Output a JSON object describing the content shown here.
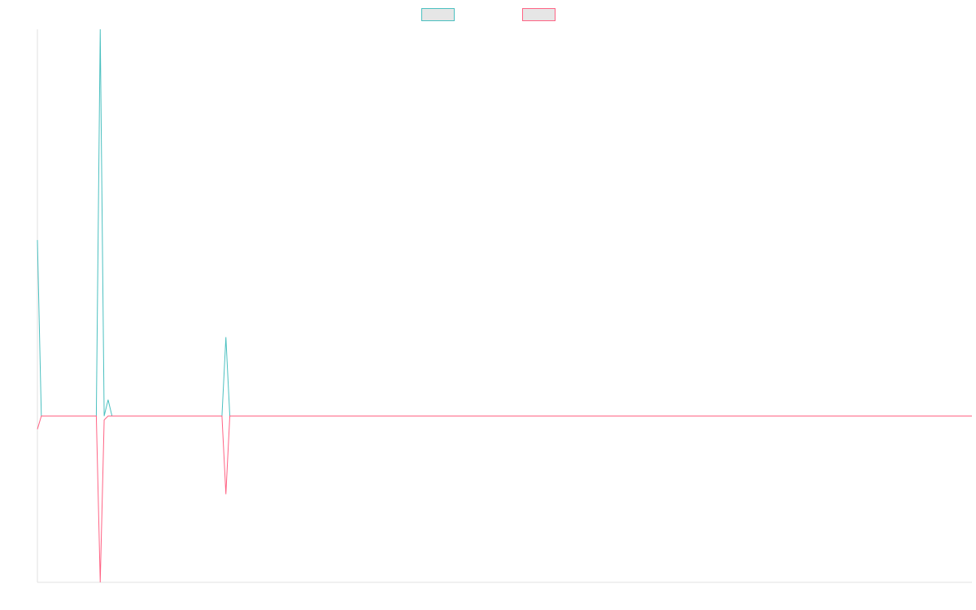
{
  "chart_data": {
    "type": "line",
    "x": [
      0,
      1,
      15,
      16,
      17,
      18,
      19,
      47,
      48,
      49,
      238
    ],
    "xlim": [
      0,
      238
    ],
    "ylim": [
      -43,
      100
    ],
    "series": [
      {
        "color": "#4bc0c0",
        "values": [
          45.5,
          0,
          0,
          100,
          0,
          4.2,
          0,
          0,
          20.4,
          0,
          0
        ]
      },
      {
        "color": "#ff6384",
        "values": [
          -3.4,
          0,
          0,
          -43,
          -1,
          0,
          0,
          0,
          -20.2,
          0,
          0
        ]
      }
    ]
  }
}
